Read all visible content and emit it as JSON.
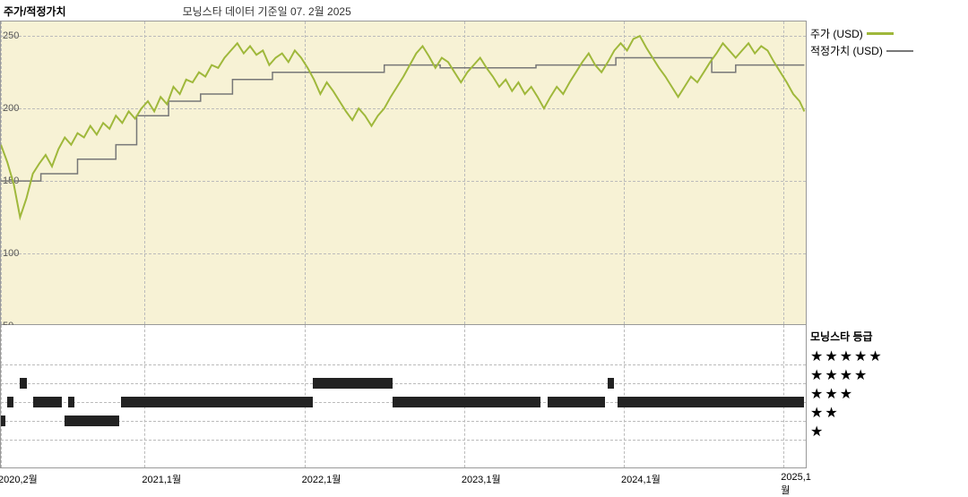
{
  "header": {
    "title": "주가/적정가치",
    "subtitle": "모닝스타 데이터 기준일 07. 2월 2025"
  },
  "legend_top": {
    "items": [
      {
        "label": "주가 (USD)",
        "color": "#9fb83b"
      },
      {
        "label": "적정가치 (USD)",
        "color": "#777777"
      }
    ]
  },
  "price_chart": {
    "type": "line",
    "background_color": "#f7f2d5",
    "grid_color": "#bbbbbb",
    "ylim": [
      50,
      260
    ],
    "ylabels": [
      50,
      100,
      150,
      200,
      250
    ],
    "x_range": [
      2020.1,
      2025.15
    ],
    "xticks": [
      {
        "pos": 2020.1,
        "label": "2020,2월"
      },
      {
        "pos": 2021.0,
        "label": "2021,1월"
      },
      {
        "pos": 2022.0,
        "label": "2022,1월"
      },
      {
        "pos": 2023.0,
        "label": "2023,1월"
      },
      {
        "pos": 2024.0,
        "label": "2024,1월"
      },
      {
        "pos": 2025.0,
        "label": "2025,1월"
      }
    ],
    "price_color": "#9fb83b",
    "price_width": 2,
    "fair_color": "#777777",
    "fair_width": 1.5,
    "price": [
      [
        2020.1,
        175
      ],
      [
        2020.14,
        163
      ],
      [
        2020.18,
        148
      ],
      [
        2020.22,
        125
      ],
      [
        2020.26,
        138
      ],
      [
        2020.3,
        155
      ],
      [
        2020.34,
        162
      ],
      [
        2020.38,
        168
      ],
      [
        2020.42,
        160
      ],
      [
        2020.46,
        172
      ],
      [
        2020.5,
        180
      ],
      [
        2020.54,
        175
      ],
      [
        2020.58,
        183
      ],
      [
        2020.62,
        180
      ],
      [
        2020.66,
        188
      ],
      [
        2020.7,
        182
      ],
      [
        2020.74,
        190
      ],
      [
        2020.78,
        186
      ],
      [
        2020.82,
        195
      ],
      [
        2020.86,
        190
      ],
      [
        2020.9,
        198
      ],
      [
        2020.94,
        193
      ],
      [
        2020.98,
        200
      ],
      [
        2021.02,
        205
      ],
      [
        2021.06,
        198
      ],
      [
        2021.1,
        208
      ],
      [
        2021.14,
        203
      ],
      [
        2021.18,
        215
      ],
      [
        2021.22,
        210
      ],
      [
        2021.26,
        220
      ],
      [
        2021.3,
        218
      ],
      [
        2021.34,
        225
      ],
      [
        2021.38,
        222
      ],
      [
        2021.42,
        230
      ],
      [
        2021.46,
        228
      ],
      [
        2021.5,
        235
      ],
      [
        2021.54,
        240
      ],
      [
        2021.58,
        245
      ],
      [
        2021.62,
        238
      ],
      [
        2021.66,
        243
      ],
      [
        2021.7,
        237
      ],
      [
        2021.74,
        240
      ],
      [
        2021.78,
        230
      ],
      [
        2021.82,
        235
      ],
      [
        2021.86,
        238
      ],
      [
        2021.9,
        232
      ],
      [
        2021.94,
        240
      ],
      [
        2021.98,
        235
      ],
      [
        2022.02,
        228
      ],
      [
        2022.06,
        220
      ],
      [
        2022.1,
        210
      ],
      [
        2022.14,
        218
      ],
      [
        2022.18,
        212
      ],
      [
        2022.22,
        205
      ],
      [
        2022.26,
        198
      ],
      [
        2022.3,
        192
      ],
      [
        2022.34,
        200
      ],
      [
        2022.38,
        195
      ],
      [
        2022.42,
        188
      ],
      [
        2022.46,
        195
      ],
      [
        2022.5,
        200
      ],
      [
        2022.54,
        208
      ],
      [
        2022.58,
        215
      ],
      [
        2022.62,
        222
      ],
      [
        2022.66,
        230
      ],
      [
        2022.7,
        238
      ],
      [
        2022.74,
        243
      ],
      [
        2022.78,
        236
      ],
      [
        2022.82,
        228
      ],
      [
        2022.86,
        235
      ],
      [
        2022.9,
        232
      ],
      [
        2022.94,
        225
      ],
      [
        2022.98,
        218
      ],
      [
        2023.02,
        225
      ],
      [
        2023.06,
        230
      ],
      [
        2023.1,
        235
      ],
      [
        2023.14,
        228
      ],
      [
        2023.18,
        222
      ],
      [
        2023.22,
        215
      ],
      [
        2023.26,
        220
      ],
      [
        2023.3,
        212
      ],
      [
        2023.34,
        218
      ],
      [
        2023.38,
        210
      ],
      [
        2023.42,
        215
      ],
      [
        2023.46,
        208
      ],
      [
        2023.5,
        200
      ],
      [
        2023.54,
        208
      ],
      [
        2023.58,
        215
      ],
      [
        2023.62,
        210
      ],
      [
        2023.66,
        218
      ],
      [
        2023.7,
        225
      ],
      [
        2023.74,
        232
      ],
      [
        2023.78,
        238
      ],
      [
        2023.82,
        230
      ],
      [
        2023.86,
        225
      ],
      [
        2023.9,
        232
      ],
      [
        2023.94,
        240
      ],
      [
        2023.98,
        245
      ],
      [
        2024.02,
        240
      ],
      [
        2024.06,
        248
      ],
      [
        2024.1,
        250
      ],
      [
        2024.14,
        242
      ],
      [
        2024.18,
        235
      ],
      [
        2024.22,
        228
      ],
      [
        2024.26,
        222
      ],
      [
        2024.3,
        215
      ],
      [
        2024.34,
        208
      ],
      [
        2024.38,
        215
      ],
      [
        2024.42,
        222
      ],
      [
        2024.46,
        218
      ],
      [
        2024.5,
        225
      ],
      [
        2024.54,
        232
      ],
      [
        2024.58,
        238
      ],
      [
        2024.62,
        245
      ],
      [
        2024.66,
        240
      ],
      [
        2024.7,
        235
      ],
      [
        2024.74,
        240
      ],
      [
        2024.78,
        245
      ],
      [
        2024.82,
        238
      ],
      [
        2024.86,
        243
      ],
      [
        2024.9,
        240
      ],
      [
        2024.94,
        232
      ],
      [
        2024.98,
        225
      ],
      [
        2025.02,
        218
      ],
      [
        2025.06,
        210
      ],
      [
        2025.1,
        205
      ],
      [
        2025.13,
        198
      ]
    ],
    "fair": [
      [
        2020.1,
        150
      ],
      [
        2020.35,
        150
      ],
      [
        2020.35,
        155
      ],
      [
        2020.58,
        155
      ],
      [
        2020.58,
        165
      ],
      [
        2020.82,
        165
      ],
      [
        2020.82,
        175
      ],
      [
        2020.95,
        175
      ],
      [
        2020.95,
        195
      ],
      [
        2021.15,
        195
      ],
      [
        2021.15,
        205
      ],
      [
        2021.35,
        205
      ],
      [
        2021.35,
        210
      ],
      [
        2021.55,
        210
      ],
      [
        2021.55,
        220
      ],
      [
        2021.8,
        220
      ],
      [
        2021.8,
        225
      ],
      [
        2022.5,
        225
      ],
      [
        2022.5,
        230
      ],
      [
        2022.85,
        230
      ],
      [
        2022.85,
        228
      ],
      [
        2023.45,
        228
      ],
      [
        2023.45,
        230
      ],
      [
        2023.95,
        230
      ],
      [
        2023.95,
        235
      ],
      [
        2024.55,
        235
      ],
      [
        2024.55,
        225
      ],
      [
        2024.7,
        225
      ],
      [
        2024.7,
        230
      ],
      [
        2025.13,
        230
      ]
    ]
  },
  "rating_chart": {
    "title": "모닝스타 등급",
    "levels": [
      5,
      4,
      3,
      2,
      1
    ],
    "bar_color": "#222222",
    "bars": [
      {
        "level": 5,
        "segments": []
      },
      {
        "level": 4,
        "segments": [
          [
            2020.22,
            2020.26
          ],
          [
            2022.05,
            2022.55
          ],
          [
            2023.9,
            2023.94
          ]
        ]
      },
      {
        "level": 3,
        "segments": [
          [
            2020.14,
            2020.18
          ],
          [
            2020.3,
            2020.48
          ],
          [
            2020.52,
            2020.56
          ],
          [
            2020.85,
            2022.05
          ],
          [
            2022.55,
            2023.48
          ],
          [
            2023.52,
            2023.88
          ],
          [
            2023.96,
            2025.13
          ]
        ]
      },
      {
        "level": 2,
        "segments": [
          [
            2020.1,
            2020.13
          ],
          [
            2020.5,
            2020.84
          ]
        ]
      },
      {
        "level": 1,
        "segments": []
      }
    ]
  }
}
